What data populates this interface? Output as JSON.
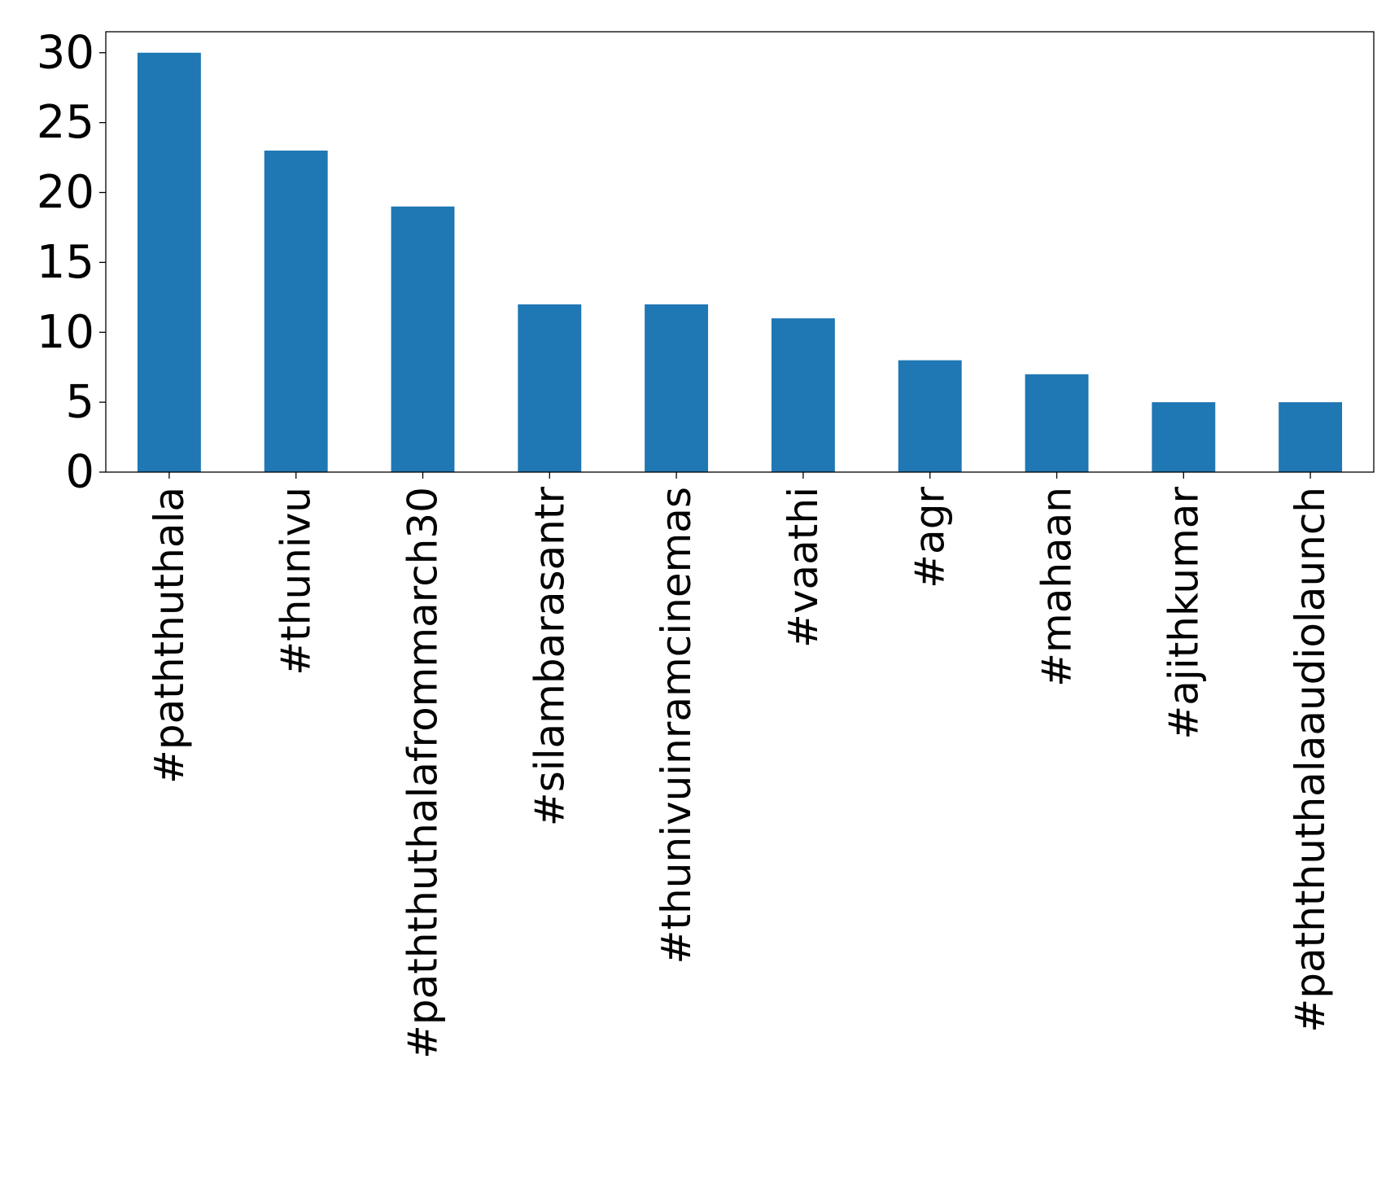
{
  "chart_data": {
    "type": "bar",
    "title": "",
    "xlabel": "",
    "ylabel": "",
    "categories": [
      "#paththuthala",
      "#thunivu",
      "#paththuthalafrommarch30",
      "#silambarasantr",
      "#thunivuinramcinemas",
      "#vaathi",
      "#agr",
      "#mahaan",
      "#ajithkumar",
      "#paththuthalaaudiolaunch"
    ],
    "values": [
      30,
      23,
      19,
      12,
      12,
      11,
      8,
      7,
      5,
      5
    ],
    "ylim": [
      0,
      31.5
    ],
    "yticks": [
      0,
      5,
      10,
      15,
      20,
      25,
      30
    ],
    "ytick_labels": [
      "0",
      "5",
      "10",
      "15",
      "20",
      "25",
      "30"
    ],
    "bar_color": "#1f77b4",
    "grid": false,
    "legend": "none"
  }
}
